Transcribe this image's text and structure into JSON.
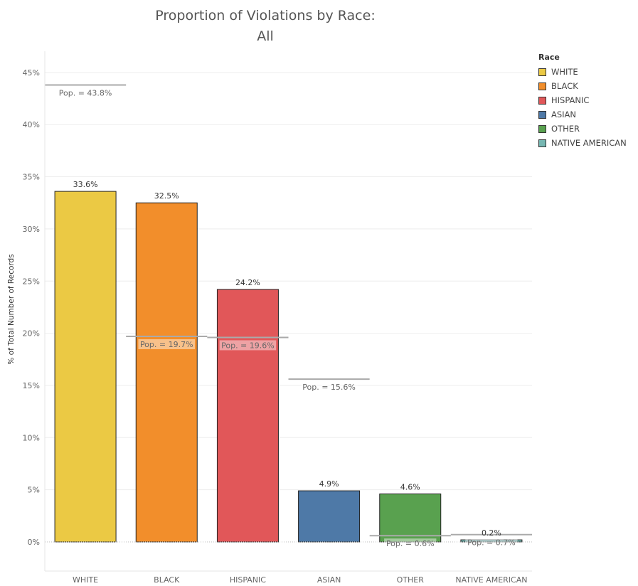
{
  "chart_data": {
    "type": "bar",
    "title_line1": "Proportion of Violations by Race:",
    "title_line2": "All",
    "ylabel": "% of Total Number of Records",
    "xlabel": "",
    "ylim": [
      -2.8,
      47
    ],
    "yticks": [
      "0%",
      "5%",
      "10%",
      "15%",
      "20%",
      "25%",
      "30%",
      "35%",
      "40%",
      "45%"
    ],
    "ytick_values": [
      0,
      5,
      10,
      15,
      20,
      25,
      30,
      35,
      40,
      45
    ],
    "grid": true,
    "legend_position": "right",
    "legend_title": "Race",
    "categories": [
      "WHITE",
      "BLACK",
      "HISPANIC",
      "ASIAN",
      "OTHER",
      "NATIVE AMERICAN"
    ],
    "values": [
      33.6,
      32.5,
      24.2,
      4.9,
      4.6,
      0.2
    ],
    "value_labels": [
      "33.6%",
      "32.5%",
      "24.2%",
      "4.9%",
      "4.6%",
      "0.2%"
    ],
    "colors": [
      "#EBC944",
      "#F28E2B",
      "#E15759",
      "#4E79A7",
      "#59A14F",
      "#76B7B2"
    ],
    "population_values": [
      43.8,
      19.7,
      19.6,
      15.6,
      0.6,
      0.7
    ],
    "population_labels": [
      "Pop. = 43.8%",
      "Pop. = 19.7%",
      "Pop. = 19.6%",
      "Pop. = 15.6%",
      "Pop. = 0.6%",
      "Pop. = 0.7%"
    ]
  }
}
